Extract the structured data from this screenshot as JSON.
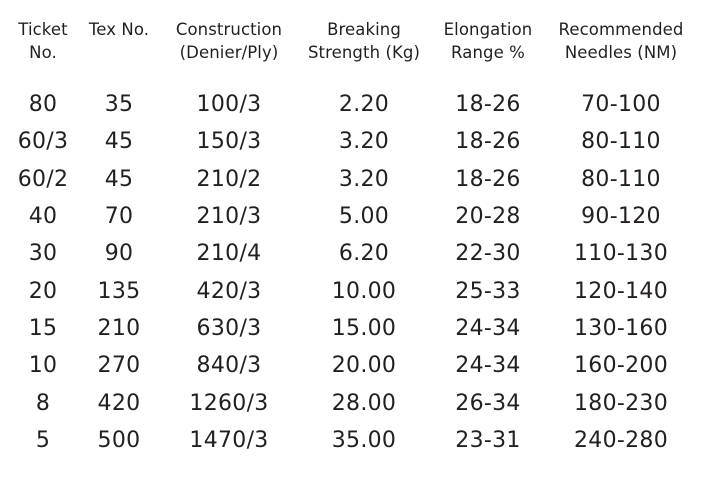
{
  "table": {
    "headers": [
      [
        "Ticket",
        "No."
      ],
      [
        "Tex No.",
        ""
      ],
      [
        "Construction",
        "(Denier/Ply)"
      ],
      [
        "Breaking",
        "Strength (Kg)"
      ],
      [
        "Elongation",
        "Range %"
      ],
      [
        "Recommended",
        "Needles (NM)"
      ]
    ],
    "rows": [
      [
        "80",
        "35",
        "100/3",
        "2.20",
        "18-26",
        "70-100"
      ],
      [
        "60/3",
        "45",
        "150/3",
        "3.20",
        "18-26",
        "80-110"
      ],
      [
        "60/2",
        "45",
        "210/2",
        "3.20",
        "18-26",
        "80-110"
      ],
      [
        "40",
        "70",
        "210/3",
        "5.00",
        "20-28",
        "90-120"
      ],
      [
        "30",
        "90",
        "210/4",
        "6.20",
        "22-30",
        "110-130"
      ],
      [
        "20",
        "135",
        "420/3",
        "10.00",
        "25-33",
        "120-140"
      ],
      [
        "15",
        "210",
        "630/3",
        "15.00",
        "24-34",
        "130-160"
      ],
      [
        "10",
        "270",
        "840/3",
        "20.00",
        "24-34",
        "160-200"
      ],
      [
        "8",
        "420",
        "1260/3",
        "28.00",
        "26-34",
        "180-230"
      ],
      [
        "5",
        "500",
        "1470/3",
        "35.00",
        "23-31",
        "240-280"
      ]
    ]
  }
}
